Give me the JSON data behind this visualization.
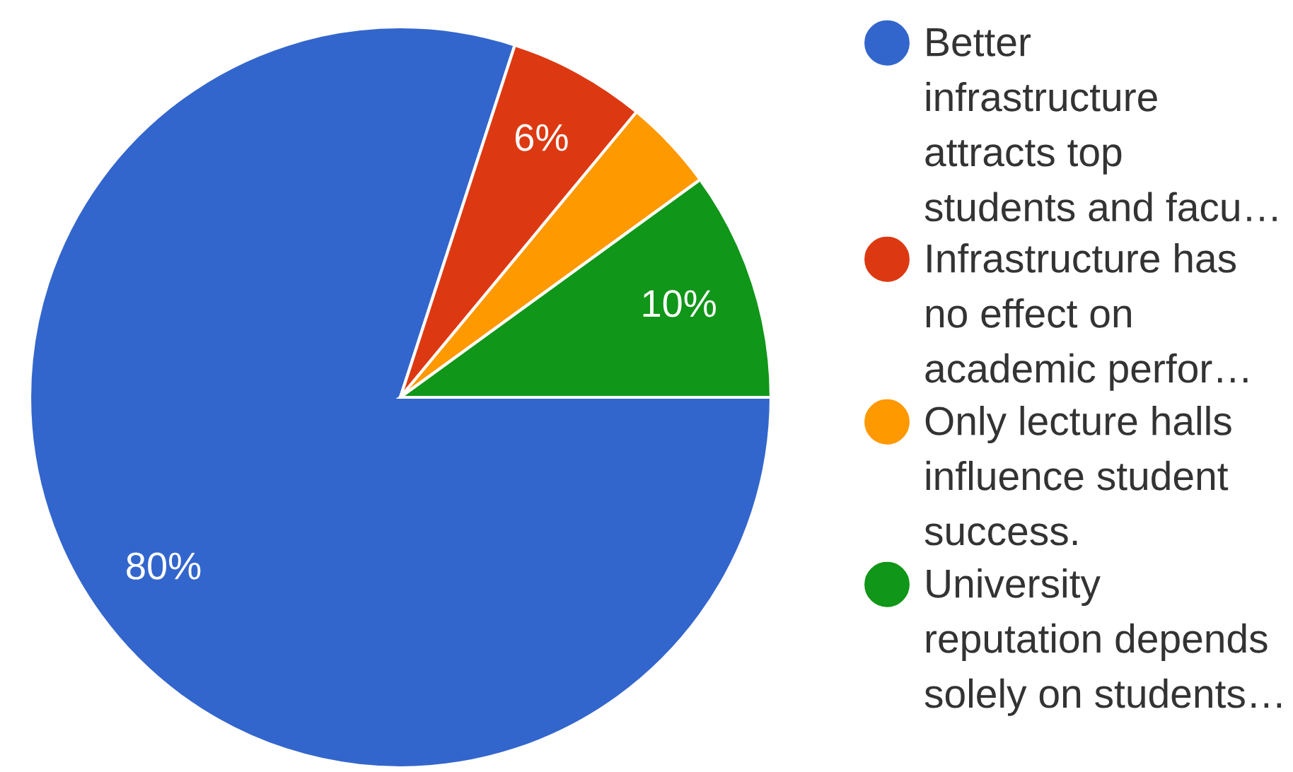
{
  "chart_data": {
    "type": "pie",
    "categories": [
      "Better\ninfrastructure\nattracts top\nstudents and facu…",
      "Infrastructure has\nno effect on\nacademic perfor…",
      "Only lecture halls\ninfluence student\nsuccess.",
      "University\nreputation depends\nsolely on students…"
    ],
    "values": [
      80,
      6,
      4,
      10
    ],
    "colors": [
      "#3366cc",
      "#dc3912",
      "#ff9900",
      "#109618"
    ],
    "value_labels": [
      "80%",
      "6%",
      null,
      "10%"
    ],
    "legend": "right"
  }
}
